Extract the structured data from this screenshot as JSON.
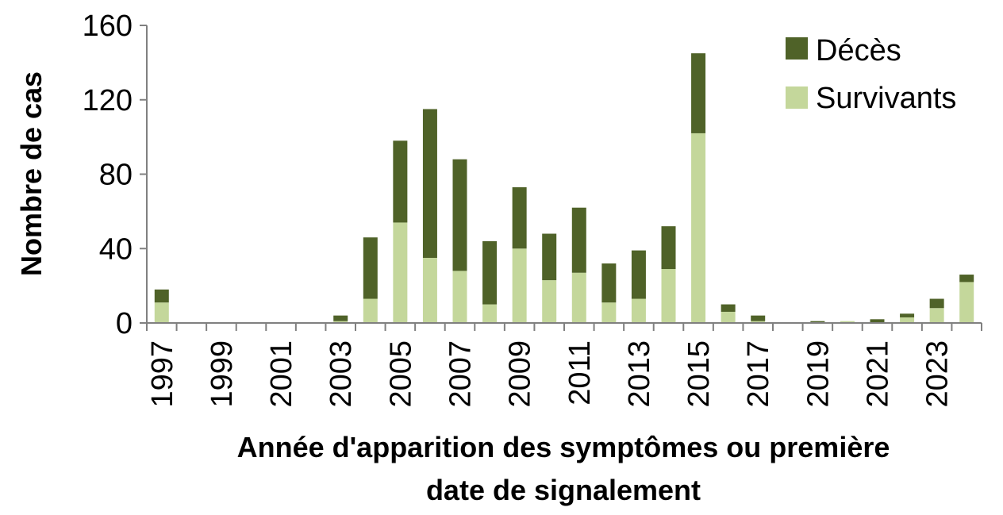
{
  "chart_data": {
    "type": "bar",
    "stacked": true,
    "title": "",
    "xlabel_lines": [
      "Année d'apparition des symptômes ou première",
      "date de signalement"
    ],
    "ylabel": "Nombre de cas",
    "ylim": [
      0,
      160
    ],
    "yticks": [
      0,
      40,
      80,
      120,
      160
    ],
    "grid": false,
    "legend_position": "top-right",
    "categories": [
      1997,
      1998,
      1999,
      2000,
      2001,
      2002,
      2003,
      2004,
      2005,
      2006,
      2007,
      2008,
      2009,
      2010,
      2011,
      2012,
      2013,
      2014,
      2015,
      2016,
      2017,
      2018,
      2019,
      2020,
      2021,
      2022,
      2023,
      2024
    ],
    "xtick_labels": [
      "1997",
      "1999",
      "2001",
      "2003",
      "2005",
      "2007",
      "2009",
      "2011",
      "2013",
      "2015",
      "2017",
      "2019",
      "2021",
      "2023"
    ],
    "series": [
      {
        "name": "Survivants",
        "color": "#c4d79b",
        "values": [
          11,
          0,
          0,
          0,
          0,
          0,
          1,
          13,
          54,
          35,
          28,
          10,
          40,
          23,
          27,
          11,
          13,
          29,
          102,
          6,
          1,
          0,
          0,
          1,
          0,
          3,
          8,
          22
        ]
      },
      {
        "name": "Décès",
        "color": "#4f6228",
        "values": [
          7,
          0,
          0,
          0,
          0,
          0,
          3,
          33,
          44,
          80,
          60,
          34,
          33,
          25,
          35,
          21,
          26,
          23,
          43,
          4,
          3,
          0,
          1,
          0,
          2,
          2,
          5,
          4
        ]
      }
    ],
    "legend_order": [
      "Décès",
      "Survivants"
    ]
  }
}
